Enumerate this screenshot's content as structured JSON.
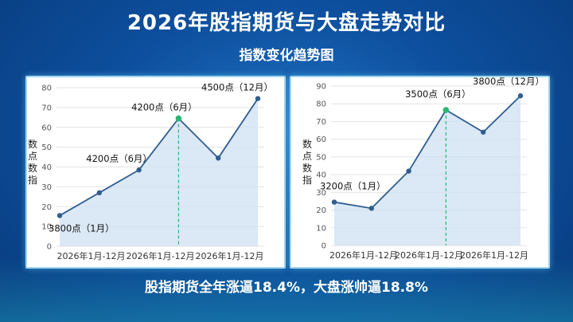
{
  "header": {
    "title": "2026年股指期货与大盘走势对比",
    "subtitle": "指数变化趋势图"
  },
  "footer": {
    "summary": "股指期货全年涨逼18.4%，大盘涨帅逼18.8%"
  },
  "colors": {
    "line": "#2f5d8f",
    "highlight": "#2bb673",
    "fill": "#cfe0f3",
    "grid": "#e3e3e3"
  },
  "chart_data": [
    {
      "type": "line",
      "ylabel": "数点数指",
      "ylim": [
        0,
        80
      ],
      "yticks": [
        0,
        10,
        20,
        30,
        40,
        50,
        60,
        70,
        80
      ],
      "xticks": [
        "2026年1月-12月",
        "2026年1月-12月",
        "2026年1月-12月"
      ],
      "values": [
        15.5,
        27,
        38.5,
        64.5,
        44.5,
        74.5
      ],
      "highlight_index": 3,
      "annotations": [
        {
          "index": 0,
          "text": "3800点（1月）"
        },
        {
          "index": 2,
          "text": "4200点（6月）"
        },
        {
          "index": 3,
          "text": "4200点（6月）"
        },
        {
          "index": 5,
          "text": "4500点（12月）"
        }
      ]
    },
    {
      "type": "line",
      "ylabel": "数点数指",
      "ylim": [
        0,
        90
      ],
      "yticks": [
        0,
        10,
        20,
        30,
        40,
        50,
        60,
        70,
        80,
        90
      ],
      "xticks": [
        "2026年1月-12月",
        "2026年1月-12月",
        "2026年1月-12月"
      ],
      "values": [
        24.5,
        21,
        42,
        76.5,
        64,
        84.5
      ],
      "highlight_index": 3,
      "annotations": [
        {
          "index": 0,
          "text": "3200点（1月）"
        },
        {
          "index": 3,
          "text": "3500点（6月）"
        },
        {
          "index": 5,
          "text": "3800点（12月）"
        }
      ]
    }
  ]
}
